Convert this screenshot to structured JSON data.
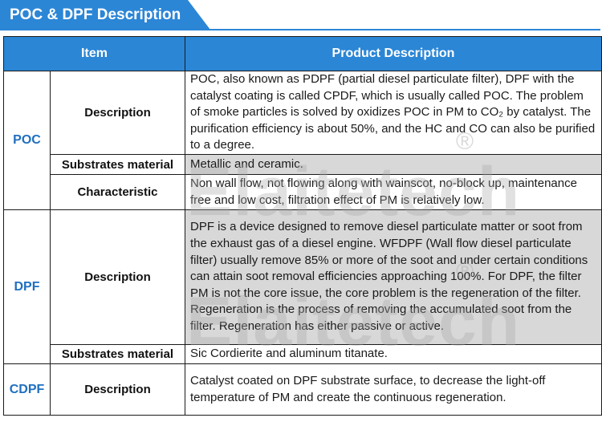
{
  "title": "POC & DPF Description",
  "header": {
    "item": "Item",
    "product_description": "Product Description"
  },
  "rows": {
    "poc_item": "POC",
    "poc_desc_label": "Description",
    "poc_desc_text": "POC, also known as PDPF (partial diesel particulate filter), DPF with the catalyst coating is called CPDF, which is usually called POC. The problem of smoke particles is solved by oxidizes POC in PM to CO₂ by catalyst. The purification efficiency is about 50%, and the HC and CO can also be purified to a degree.",
    "poc_sub_label": "Substrates material",
    "poc_sub_text": "Metallic and ceramic.",
    "poc_char_label": "Characteristic",
    "poc_char_text": "Non wall flow, not flowing along with wainscot, no-block up, maintenance free and low cost, filtration effect of PM is relatively low.",
    "dpf_item": "DPF",
    "dpf_desc_label": "Description",
    "dpf_desc_text": "DPF is a device designed to remove diesel particulate matter or soot from the exhaust gas of a diesel engine. WFDPF (Wall flow diesel particulate filter) usually remove 85% or more of the soot and under certain conditions can attain soot removal efficiencies approaching 100%. For DPF, the filter PM is not the core issue, the core problem is the regeneration of the filter. Regeneration is the process of removing the accumulated soot from the filter. Regeneration has either passive or active.",
    "dpf_sub_label": "Substrates material",
    "dpf_sub_text": "Sic Cordierite and aluminum titanate.",
    "cdpf_item": "CDPF",
    "cdpf_desc_label": "Description",
    "cdpf_desc_text": "Catalyst coated on DPF substrate surface, to decrease the light-off temperature of PM and create the continuous regeneration."
  },
  "watermark": {
    "text": "Elaitetech",
    "mark": "®"
  },
  "colors": {
    "accent": "#2b86d6",
    "item_text": "#1f6fc0",
    "shade": "#d8d8d8"
  }
}
